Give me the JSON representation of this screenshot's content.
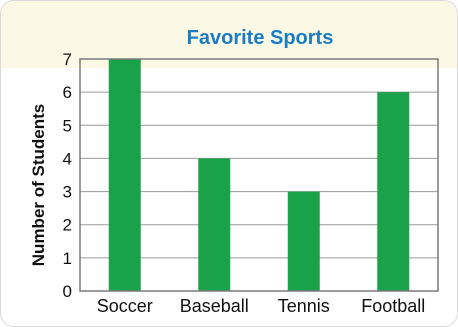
{
  "chart_data": {
    "type": "bar",
    "title": "Favorite Sports",
    "ylabel": "Number of Students",
    "xlabel": "",
    "categories": [
      "Soccer",
      "Baseball",
      "Tennis",
      "Football"
    ],
    "values": [
      7,
      4,
      3,
      6
    ],
    "ylim": [
      0,
      7
    ],
    "yticks": [
      "0",
      "1",
      "2",
      "3",
      "4",
      "5",
      "6",
      "7"
    ],
    "grid": true,
    "colors": {
      "bar": "#1aa24a",
      "title": "#1a7cc3",
      "header_bg": "#fbf8e6"
    }
  }
}
